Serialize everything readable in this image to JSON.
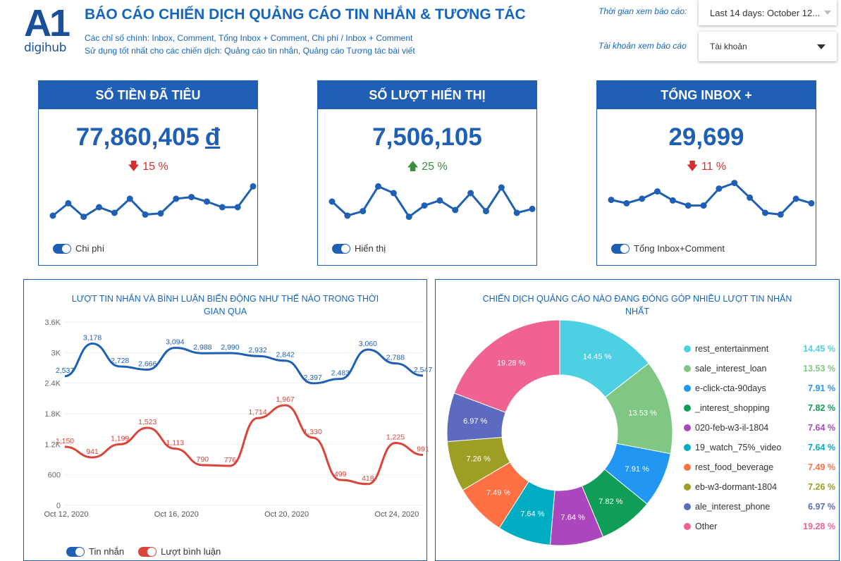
{
  "header": {
    "logo_main": "A1",
    "logo_sub": "digihub",
    "title": "BÁO CÁO CHIẾN DỊCH QUẢNG CÁO TIN NHẮN & TƯƠNG TÁC",
    "subtitle1": "Các chỉ số chính: Inbox, Comment, Tổng Inbox + Comment, Chi phí / Inbox + Comment",
    "subtitle2": "Sử dụng tốt nhất cho các chiến dịch: Quảng cáo tin nhắn, Quảng cáo Tương tác bài viết",
    "date_label": "Thời gian xem báo cáo:",
    "date_value": "Last 14 days: October 12...",
    "account_label": "Tài khoản xem báo cáo",
    "account_value": "Tài khoản"
  },
  "kpis": [
    {
      "title": "SỐ TIỀN ĐÃ TIÊU",
      "value": "77,860,405",
      "currency": "đ",
      "delta": "15 %",
      "direction": "down",
      "toggle": "Chi phí",
      "spark": [
        30,
        52,
        28,
        45,
        35,
        60,
        32,
        34,
        60,
        63,
        55,
        45,
        45,
        82
      ]
    },
    {
      "title": "SỐ LƯỢT HIỂN THỊ",
      "value": "7,506,105",
      "currency": "",
      "delta": "25 %",
      "direction": "up",
      "toggle": "Hiển thị",
      "spark": [
        55,
        30,
        38,
        82,
        70,
        28,
        48,
        57,
        40,
        70,
        38,
        80,
        35,
        42
      ]
    },
    {
      "title": "TỔNG INBOX +",
      "value": "29,699",
      "currency": "",
      "delta": "11 %",
      "direction": "down",
      "toggle": "Tổng Inbox+Comment",
      "spark": [
        58,
        52,
        60,
        73,
        57,
        48,
        48,
        78,
        88,
        62,
        35,
        32,
        60,
        52
      ]
    }
  ],
  "line_panel": {
    "title": "LƯỢT TIN NHẮN VÀ BÌNH LUẬN BIẾN ĐỘNG NHƯ THẾ NÀO TRONG THỜI GIAN QUA",
    "legend_messages": "Tin nhắn",
    "legend_comments": "Lượt bình luận"
  },
  "chart_data": [
    {
      "type": "line",
      "title": "LƯỢT TIN NHẮN VÀ BÌNH LUẬN BIẾN ĐỘNG NHƯ THẾ NÀO TRONG THỜI GIAN QUA",
      "x_ticks": [
        "Oct 12, 2020",
        "Oct 16, 2020",
        "Oct 20, 2020",
        "Oct 24, 2020"
      ],
      "y_ticks": [
        "0",
        "600",
        "1.2K",
        "1.8K",
        "2.4K",
        "3K",
        "3.6K"
      ],
      "ylim": [
        0,
        3600
      ],
      "series": [
        {
          "name": "Tin nhắn",
          "color": "#1f5fb4",
          "values": [
            2537,
            3178,
            2728,
            2666,
            3094,
            2988,
            2990,
            2932,
            2842,
            2397,
            2483,
            3060,
            2788,
            2547
          ],
          "labels": [
            "2,537",
            "3,178",
            "2,728",
            "2,666",
            "3,094",
            "2,988",
            "2,990",
            "2,932",
            "2,842",
            "2,397",
            "2,483",
            "3,060",
            "2,788",
            "2,547"
          ]
        },
        {
          "name": "Lượt bình luận",
          "color": "#d9453a",
          "values": [
            1150,
            941,
            1199,
            1523,
            1113,
            790,
            776,
            1714,
            1967,
            1330,
            499,
            418,
            1225,
            991
          ],
          "labels": [
            "1,150",
            "941",
            "1,199",
            "1,523",
            "1,113",
            "790",
            "776",
            "1,714",
            "1,967",
            "1,330",
            "499",
            "418",
            "1,225",
            "991"
          ]
        }
      ]
    },
    {
      "type": "pie",
      "title": "CHIẾN DỊCH QUẢNG CÁO NÀO ĐANG ĐÓNG GÓP NHIỀU LƯỢT TIN NHẮN NHẤT",
      "slices": [
        {
          "name": "rest_entertainment",
          "value": 14.45,
          "label": "14.45 %",
          "color": "#4dd0e1"
        },
        {
          "name": "sale_interest_loan",
          "value": 13.53,
          "label": "13.53 %",
          "color": "#81c784"
        },
        {
          "name": "e-click-cta-90days",
          "value": 7.91,
          "label": "7.91 %",
          "color": "#2196f3"
        },
        {
          "name": "_interest_shopping",
          "value": 7.82,
          "label": "7.82 %",
          "color": "#0f9d58"
        },
        {
          "name": "020-feb-w3-il-1804",
          "value": 7.64,
          "label": "7.64 %",
          "color": "#ab47bc"
        },
        {
          "name": "19_watch_75%_video",
          "value": 7.64,
          "label": "7.64 %",
          "color": "#00acc1"
        },
        {
          "name": "rest_food_beverage",
          "value": 7.49,
          "label": "7.49 %",
          "color": "#ff7043"
        },
        {
          "name": "eb-w3-dormant-1804",
          "value": 7.26,
          "label": "7.26 %",
          "color": "#9e9d24"
        },
        {
          "name": "ale_interest_phone",
          "value": 6.97,
          "label": "6.97 %",
          "color": "#5c6bc0"
        },
        {
          "name": "Other",
          "value": 19.28,
          "label": "19.28 %",
          "color": "#f06292"
        }
      ]
    }
  ]
}
